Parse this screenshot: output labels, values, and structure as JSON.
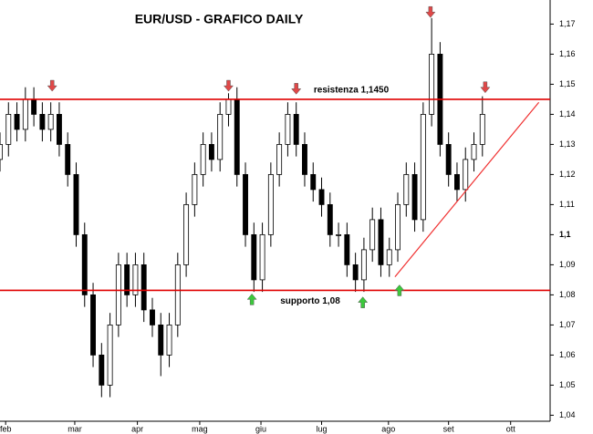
{
  "chart_data": {
    "type": "candlestick",
    "title": "EUR/USD - GRAFICO DAILY",
    "x": [
      0,
      3,
      6,
      9,
      12,
      15,
      18,
      21,
      24,
      27,
      30,
      33,
      36,
      39,
      42,
      45,
      48,
      51,
      54,
      57,
      60,
      63,
      66,
      69,
      72,
      75,
      78,
      81,
      84,
      87,
      90,
      93,
      96,
      99,
      102,
      105,
      108,
      111,
      114,
      117,
      120,
      123,
      126,
      129,
      132,
      135,
      138,
      141,
      144,
      147,
      150,
      153,
      156,
      159,
      162,
      165,
      168,
      171
    ],
    "open": [
      1.125,
      1.13,
      1.14,
      1.135,
      1.145,
      1.14,
      1.135,
      1.14,
      1.13,
      1.12,
      1.1,
      1.08,
      1.06,
      1.05,
      1.07,
      1.09,
      1.08,
      1.09,
      1.075,
      1.07,
      1.06,
      1.07,
      1.09,
      1.11,
      1.12,
      1.13,
      1.125,
      1.14,
      1.145,
      1.12,
      1.1,
      1.085,
      1.1,
      1.12,
      1.13,
      1.14,
      1.13,
      1.12,
      1.115,
      1.11,
      1.1,
      1.1,
      1.09,
      1.085,
      1.095,
      1.105,
      1.09,
      1.095,
      1.11,
      1.12,
      1.105,
      1.14,
      1.16,
      1.13,
      1.12,
      1.115,
      1.125,
      1.13
    ],
    "high": [
      1.134,
      1.144,
      1.144,
      1.149,
      1.149,
      1.144,
      1.144,
      1.144,
      1.134,
      1.124,
      1.104,
      1.084,
      1.064,
      1.074,
      1.094,
      1.094,
      1.094,
      1.094,
      1.079,
      1.074,
      1.074,
      1.094,
      1.114,
      1.124,
      1.134,
      1.134,
      1.144,
      1.147,
      1.149,
      1.124,
      1.104,
      1.104,
      1.124,
      1.134,
      1.144,
      1.144,
      1.134,
      1.124,
      1.119,
      1.114,
      1.104,
      1.104,
      1.094,
      1.099,
      1.109,
      1.109,
      1.099,
      1.114,
      1.124,
      1.124,
      1.144,
      1.172,
      1.164,
      1.134,
      1.124,
      1.129,
      1.134,
      1.146
    ],
    "low": [
      1.121,
      1.126,
      1.131,
      1.131,
      1.136,
      1.131,
      1.131,
      1.126,
      1.116,
      1.096,
      1.076,
      1.056,
      1.046,
      1.046,
      1.066,
      1.076,
      1.076,
      1.071,
      1.066,
      1.053,
      1.056,
      1.066,
      1.086,
      1.106,
      1.116,
      1.121,
      1.121,
      1.136,
      1.116,
      1.096,
      1.081,
      1.081,
      1.096,
      1.116,
      1.126,
      1.126,
      1.116,
      1.111,
      1.106,
      1.096,
      1.096,
      1.086,
      1.081,
      1.081,
      1.091,
      1.086,
      1.086,
      1.091,
      1.106,
      1.101,
      1.101,
      1.136,
      1.126,
      1.116,
      1.111,
      1.111,
      1.121,
      1.126
    ],
    "close": [
      1.13,
      1.14,
      1.135,
      1.145,
      1.14,
      1.135,
      1.14,
      1.13,
      1.12,
      1.1,
      1.08,
      1.06,
      1.05,
      1.07,
      1.09,
      1.08,
      1.09,
      1.075,
      1.07,
      1.06,
      1.07,
      1.09,
      1.11,
      1.12,
      1.13,
      1.125,
      1.14,
      1.145,
      1.12,
      1.1,
      1.085,
      1.1,
      1.12,
      1.13,
      1.14,
      1.13,
      1.12,
      1.115,
      1.11,
      1.1,
      1.1,
      1.09,
      1.085,
      1.095,
      1.105,
      1.09,
      1.095,
      1.11,
      1.12,
      1.105,
      1.14,
      1.16,
      1.13,
      1.12,
      1.115,
      1.125,
      1.13,
      1.14
    ],
    "xlim": [
      0,
      195
    ],
    "xticks": [
      {
        "value": 2,
        "label": "feb"
      },
      {
        "value": 26.5,
        "label": "mar"
      },
      {
        "value": 48.7,
        "label": "apr"
      },
      {
        "value": 70.8,
        "label": "mag"
      },
      {
        "value": 92.5,
        "label": "giu"
      },
      {
        "value": 114,
        "label": "lug"
      },
      {
        "value": 137.7,
        "label": "ago"
      },
      {
        "value": 159,
        "label": "set"
      },
      {
        "value": 181,
        "label": "ott"
      }
    ],
    "ylim": [
      1.038,
      1.178
    ],
    "yticks": [
      {
        "value": 1.04,
        "label": "1,04"
      },
      {
        "value": 1.05,
        "label": "1,05"
      },
      {
        "value": 1.06,
        "label": "1,06"
      },
      {
        "value": 1.07,
        "label": "1,07"
      },
      {
        "value": 1.08,
        "label": "1,08"
      },
      {
        "value": 1.09,
        "label": "1,09"
      },
      {
        "value": 1.1,
        "label": "1,1"
      },
      {
        "value": 1.11,
        "label": "1,11"
      },
      {
        "value": 1.12,
        "label": "1,12"
      },
      {
        "value": 1.13,
        "label": "1,13"
      },
      {
        "value": 1.14,
        "label": "1,14"
      },
      {
        "value": 1.15,
        "label": "1,15"
      },
      {
        "value": 1.16,
        "label": "1,16"
      },
      {
        "value": 1.17,
        "label": "1,17"
      }
    ],
    "hlines": [
      {
        "value": 1.145,
        "label": "resistenza 1,1450",
        "color": "#e00000"
      },
      {
        "value": 1.0815,
        "label": "supporto 1,08",
        "color": "#e00000"
      }
    ],
    "trendline": {
      "x": [
        140,
        191
      ],
      "y": [
        1.086,
        1.144
      ],
      "color": "#f03030"
    },
    "arrows": [
      {
        "x": 18.5,
        "y": 1.1495,
        "dir": "down",
        "color": "#e04848"
      },
      {
        "x": 81,
        "y": 1.1495,
        "dir": "down",
        "color": "#e04848"
      },
      {
        "x": 105,
        "y": 1.1485,
        "dir": "down",
        "color": "#e04848"
      },
      {
        "x": 152.6,
        "y": 1.174,
        "dir": "down",
        "color": "#e04848"
      },
      {
        "x": 172,
        "y": 1.149,
        "dir": "down",
        "color": "#e04848"
      },
      {
        "x": 89.3,
        "y": 1.0785,
        "dir": "up",
        "color": "#3cc83c"
      },
      {
        "x": 128.6,
        "y": 1.0775,
        "dir": "up",
        "color": "#3cc83c"
      },
      {
        "x": 141.6,
        "y": 1.0815,
        "dir": "up",
        "color": "#3cc83c"
      }
    ]
  }
}
